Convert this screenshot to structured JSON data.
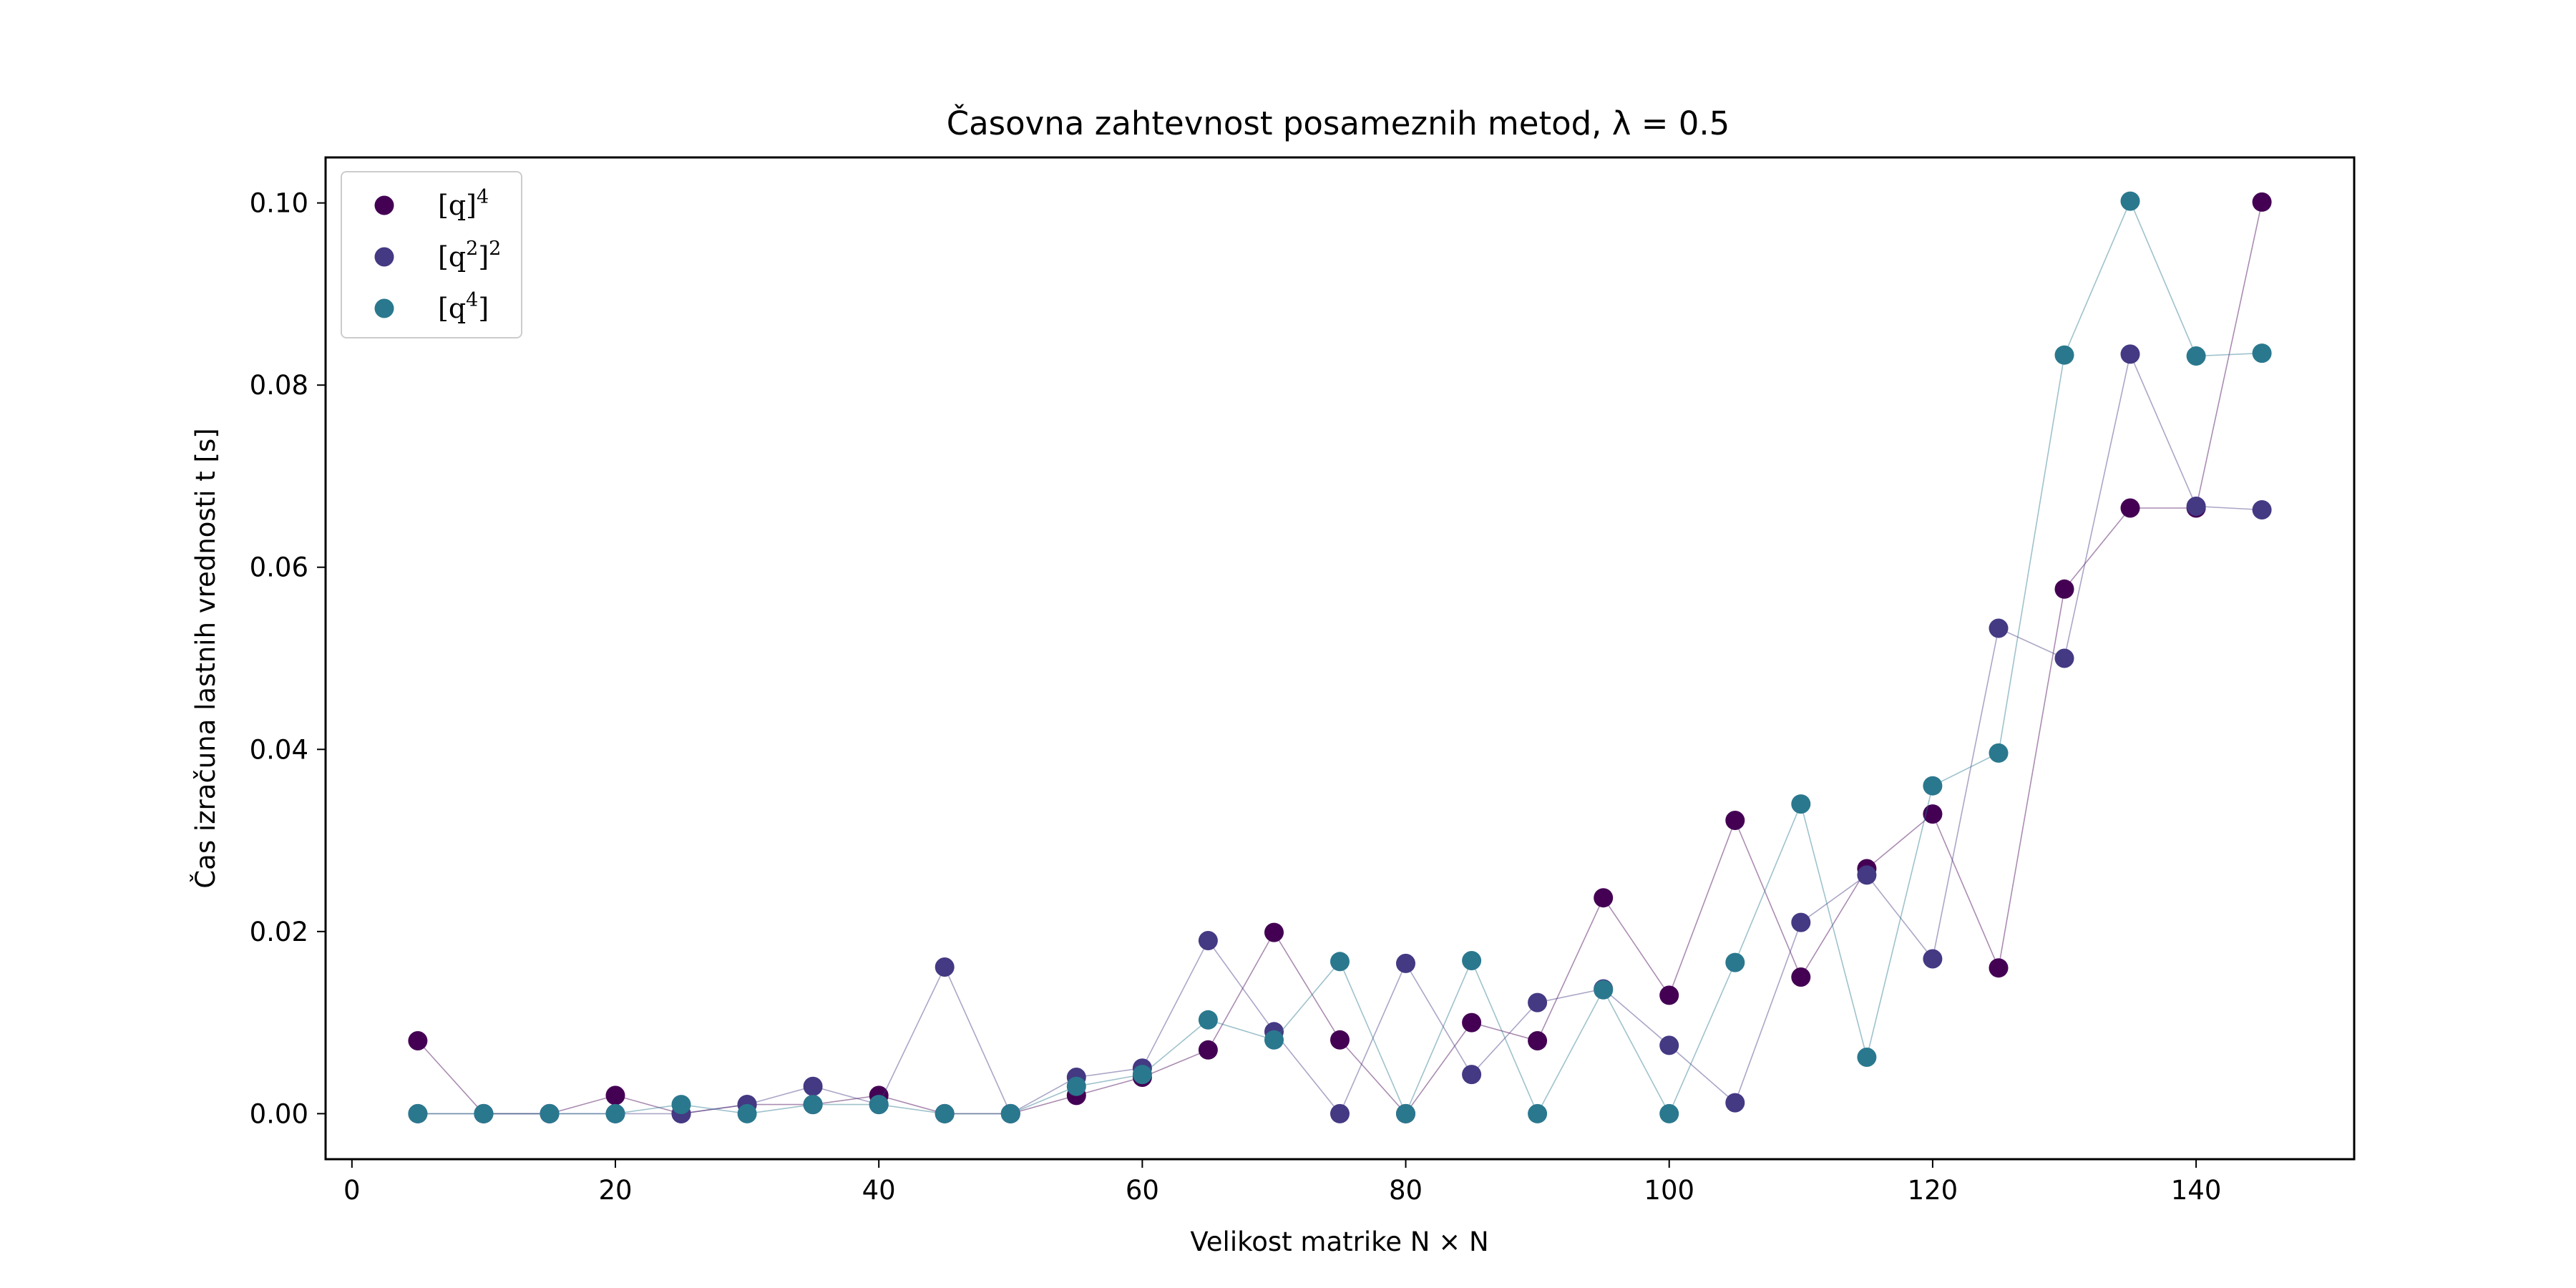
{
  "chart_data": {
    "type": "scatter",
    "title": "Časovna zahtevnost posameznih metod, λ = 0.5",
    "xlabel": "Velikost matrike N × N",
    "ylabel": "Čas izračuna lastnih vrednosti t [s]",
    "xlim": [
      -2.0,
      152.0
    ],
    "ylim": [
      -0.005,
      0.105
    ],
    "xticks": [
      0,
      20,
      40,
      60,
      80,
      100,
      120,
      140
    ],
    "yticks": [
      0.0,
      0.02,
      0.04,
      0.06,
      0.08,
      0.1
    ],
    "xtick_labels": [
      "0",
      "20",
      "40",
      "60",
      "80",
      "100",
      "120",
      "140"
    ],
    "ytick_labels": [
      "0.00",
      "0.02",
      "0.04",
      "0.06",
      "0.08",
      "0.10"
    ],
    "grid": false,
    "legend_position": "top-left",
    "markers_connected_by_thin_lines": true,
    "x": [
      5,
      10,
      15,
      20,
      25,
      30,
      35,
      40,
      45,
      50,
      55,
      60,
      65,
      70,
      75,
      80,
      85,
      90,
      95,
      100,
      105,
      110,
      115,
      120,
      125,
      130,
      135,
      140,
      145
    ],
    "series": [
      {
        "name": "[q]⁴",
        "label_base": "[q]",
        "label_sup": "4",
        "color": "#440154",
        "values": [
          0.008,
          0.0,
          0.0,
          0.002,
          0.0,
          0.001,
          0.001,
          0.002,
          0.0,
          0.0,
          0.002,
          0.004,
          0.007,
          0.0199,
          0.0081,
          0.0,
          0.01,
          0.008,
          0.0237,
          0.013,
          0.0322,
          0.015,
          0.0269,
          0.0329,
          0.016,
          0.0576,
          0.0665,
          0.0665,
          0.1001
        ]
      },
      {
        "name": "[q²]²",
        "label_base": "[q",
        "label_mid_sup": "2",
        "label_after": "]",
        "label_sup": "2",
        "color": "#443983",
        "values": [
          0.0,
          0.0,
          0.0,
          0.0,
          0.0,
          0.001,
          0.003,
          0.001,
          0.0161,
          0.0,
          0.004,
          0.005,
          0.019,
          0.009,
          0.0,
          0.0165,
          0.0043,
          0.0122,
          0.0137,
          0.0075,
          0.0012,
          0.021,
          0.0262,
          0.017,
          0.0533,
          0.05,
          0.0834,
          0.0667,
          0.0663
        ]
      },
      {
        "name": "[q⁴]",
        "label_base": "[q",
        "label_mid_sup": "4",
        "label_after": "]",
        "color": "#2a788e",
        "values": [
          0.0,
          0.0,
          0.0,
          0.0,
          0.001,
          0.0,
          0.001,
          0.001,
          0.0,
          0.0,
          0.003,
          0.0043,
          0.0103,
          0.0081,
          0.0167,
          0.0,
          0.0168,
          0.0,
          0.0136,
          0.0,
          0.0166,
          0.034,
          0.0062,
          0.036,
          0.0396,
          0.0833,
          0.1002,
          0.0832,
          0.0835
        ]
      }
    ]
  }
}
